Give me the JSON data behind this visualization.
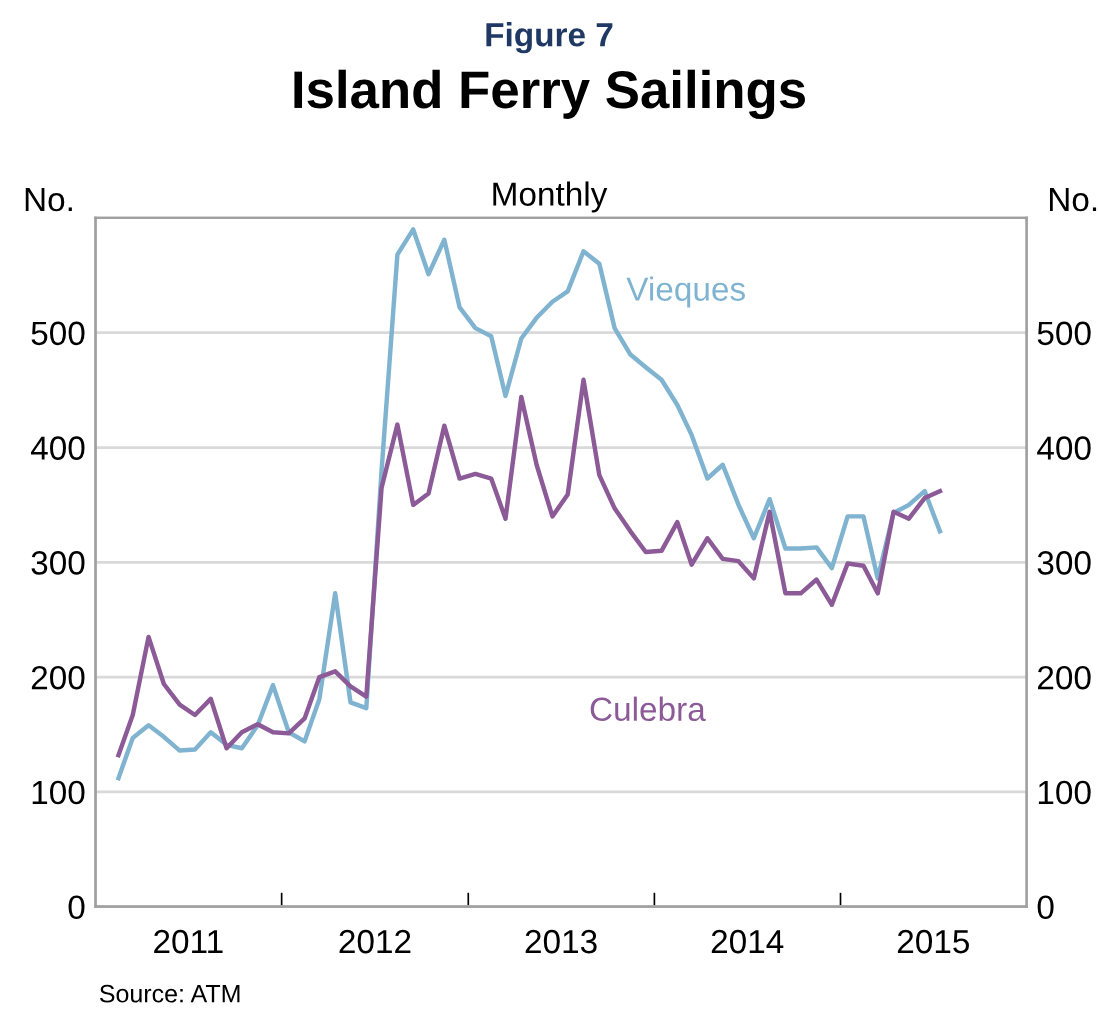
{
  "chart_data": {
    "type": "line",
    "title": "Island Ferry Sailings",
    "subtitle": "Monthly",
    "ylabel": "No.",
    "y2label": "No.",
    "annotations": [
      "Figure 7",
      "Source: ATM"
    ],
    "x": [
      "2011-02-15",
      "2011-03-15",
      "2011-04-15",
      "2011-05-15",
      "2011-06-15",
      "2011-07-15",
      "2011-08-15",
      "2011-09-15",
      "2011-10-15",
      "2011-11-15",
      "2011-12-15",
      "2012-01-15",
      "2012-02-15",
      "2012-03-15",
      "2012-04-15",
      "2012-05-15",
      "2012-06-15",
      "2012-07-15",
      "2012-08-15",
      "2012-09-15",
      "2012-10-15",
      "2012-11-15",
      "2012-12-15",
      "2013-01-15",
      "2013-02-15",
      "2013-03-15",
      "2013-04-15",
      "2013-05-15",
      "2013-06-15",
      "2013-07-15",
      "2013-08-15",
      "2013-09-15",
      "2013-10-15",
      "2013-11-15",
      "2013-12-15",
      "2014-01-15",
      "2014-02-15",
      "2014-03-15",
      "2014-04-15",
      "2014-05-15",
      "2014-06-15",
      "2014-07-15",
      "2014-08-15",
      "2014-09-15",
      "2014-10-15",
      "2014-11-15",
      "2014-12-15",
      "2015-01-15",
      "2015-02-15",
      "2015-03-15",
      "2015-04-15",
      "2015-05-15",
      "2015-06-15",
      "2015-07-15"
    ],
    "series": [
      {
        "name": "Vieques",
        "color": "#7fb3d0",
        "values": [
          112,
          147,
          158,
          148,
          136,
          137,
          152,
          141,
          138,
          158,
          193,
          152,
          144,
          181,
          273,
          178,
          173,
          380,
          568,
          590,
          551,
          581,
          522,
          504,
          497,
          445,
          495,
          513,
          527,
          536,
          571,
          560,
          504,
          481,
          470,
          459,
          437,
          411,
          373,
          385,
          350,
          321,
          355,
          312,
          312,
          313,
          295,
          340,
          340,
          286,
          343,
          350,
          362,
          327
        ]
      },
      {
        "name": "Culebra",
        "color": "#8b5a97",
        "values": [
          132,
          167,
          235,
          194,
          176,
          167,
          181,
          138,
          152,
          159,
          152,
          151,
          164,
          200,
          205,
          192,
          183,
          365,
          420,
          350,
          360,
          419,
          373,
          377,
          373,
          338,
          444,
          385,
          340,
          359,
          459,
          376,
          347,
          327,
          309,
          310,
          335,
          298,
          321,
          303,
          301,
          286,
          344,
          273,
          273,
          285,
          263,
          299,
          297,
          273,
          344,
          338,
          356,
          362
        ]
      }
    ],
    "xlim": [
      "2011-01-01",
      "2016-01-01"
    ],
    "xticks": [
      {
        "value": "2011-07-02",
        "label": "2011"
      },
      {
        "value": "2012-07-02",
        "label": "2012"
      },
      {
        "value": "2013-07-02",
        "label": "2013"
      },
      {
        "value": "2014-07-02",
        "label": "2014"
      },
      {
        "value": "2015-07-02",
        "label": "2015"
      },
      {
        "value": "2012-01-01",
        "label": null
      },
      {
        "value": "2013-01-01",
        "label": null
      },
      {
        "value": "2014-01-01",
        "label": null
      },
      {
        "value": "2015-01-01",
        "label": null
      }
    ],
    "ylim": [
      0,
      600
    ],
    "yticks": [
      0,
      100,
      200,
      300,
      400,
      500
    ],
    "y2lim": [
      0,
      600
    ],
    "y2ticks": [
      0,
      100,
      200,
      300,
      400,
      500
    ],
    "grid": "y",
    "legend": false,
    "line_style": "solid"
  }
}
